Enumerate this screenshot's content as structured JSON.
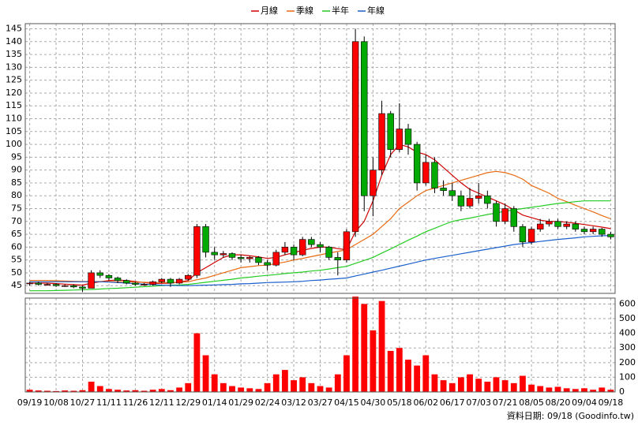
{
  "chart_data": [
    {
      "type": "candlestick",
      "open": [
        46,
        46,
        45.5,
        45.5,
        45,
        45,
        44.5,
        44,
        50,
        49,
        48,
        47,
        46,
        45.5,
        45.5,
        46.5,
        47.5,
        46,
        47.5,
        49,
        68,
        58,
        57,
        57.5,
        56,
        55.5,
        56,
        54,
        53,
        58,
        60,
        57,
        63,
        61,
        60,
        56,
        55,
        66,
        140,
        80,
        90,
        112,
        98,
        106,
        100,
        85,
        93,
        83,
        82,
        80,
        76,
        79,
        80,
        77,
        70,
        75,
        68,
        62,
        67,
        69,
        70,
        68,
        69,
        67,
        66,
        67,
        65
      ],
      "high": [
        46.5,
        46.5,
        46,
        46,
        45.5,
        45.5,
        45,
        51,
        51,
        49.5,
        48.5,
        47.5,
        46.5,
        46,
        47,
        48,
        48,
        48,
        49.5,
        69,
        69,
        60,
        58.5,
        58,
        57,
        56.5,
        56.5,
        55,
        59,
        62,
        61,
        64,
        64,
        62,
        60.5,
        58,
        67,
        145,
        142,
        95,
        117,
        113,
        116,
        108,
        101,
        96,
        95,
        86,
        85,
        82,
        83,
        85,
        82,
        78,
        77,
        76,
        69,
        68,
        71,
        71,
        71,
        70,
        70,
        68,
        68,
        67.5,
        66
      ],
      "low": [
        45,
        45,
        45,
        44.5,
        44.5,
        44,
        42.5,
        44,
        48,
        47,
        46,
        45.5,
        45,
        45,
        45,
        46,
        44.5,
        45.5,
        47,
        48,
        56,
        55,
        56,
        55,
        54,
        54,
        53,
        51,
        52.5,
        57,
        55,
        56.5,
        60,
        58,
        55,
        49,
        54,
        64,
        74,
        72,
        88,
        95,
        97,
        96,
        82,
        84,
        81,
        80,
        78,
        74,
        75,
        77,
        75,
        68,
        69,
        66,
        60,
        61,
        66,
        68,
        67,
        67,
        66,
        65,
        65,
        64,
        63
      ],
      "close": [
        46,
        45.5,
        45.5,
        45,
        45,
        44.5,
        44,
        50,
        49,
        48,
        47,
        46,
        45.5,
        45.5,
        46.5,
        47.5,
        46,
        47.5,
        49,
        68,
        58,
        57,
        57.5,
        56,
        55.5,
        56,
        54,
        53,
        58,
        60,
        57,
        63,
        61,
        60,
        56,
        55,
        66,
        140,
        80,
        90,
        112,
        98,
        106,
        100,
        85,
        93,
        83,
        82,
        80,
        76,
        79,
        80,
        77,
        70,
        75,
        68,
        62,
        67,
        69,
        70,
        68,
        69,
        67,
        66,
        67,
        65,
        64
      ],
      "up_color": "#ff0000",
      "down_color": "#00aa00",
      "series": [
        {
          "name": "月線",
          "color": "#d00000",
          "values": [
            46,
            46,
            46,
            45.8,
            45.6,
            45.4,
            45.2,
            46,
            46.5,
            47,
            47.2,
            47,
            46.6,
            46.2,
            45.9,
            45.9,
            46,
            46.4,
            47,
            50,
            52,
            54,
            56,
            57,
            57,
            56.6,
            56.2,
            55.6,
            56,
            57,
            57.8,
            58.8,
            59.5,
            60,
            60,
            59.4,
            59,
            66,
            70,
            78,
            88,
            96,
            100,
            99,
            97,
            96,
            94,
            91,
            88,
            85,
            82.5,
            81,
            79.5,
            78,
            76.5,
            74.5,
            72.5,
            71.5,
            70.5,
            70,
            70,
            69.7,
            69.3,
            68.8,
            68.3,
            67.8,
            67.2
          ]
        },
        {
          "name": "季線",
          "color": "#e86a10",
          "values": [
            47,
            47,
            47,
            46.9,
            46.8,
            46.7,
            46.6,
            46.6,
            46.6,
            46.6,
            46.5,
            46.5,
            46.4,
            46.3,
            46.2,
            46.2,
            46.2,
            46.3,
            46.5,
            47.3,
            48,
            49,
            50,
            51,
            52,
            52.4,
            52.8,
            53,
            53.6,
            54.2,
            55,
            55.6,
            56.3,
            57,
            57.7,
            58.3,
            59,
            61,
            63,
            65,
            68,
            71,
            75,
            77.5,
            80,
            82,
            83,
            84,
            85,
            86,
            87,
            88,
            89,
            89.5,
            89,
            88,
            86.5,
            84,
            82.5,
            81,
            79,
            77.7,
            76.3,
            75,
            73.7,
            72.3,
            71
          ]
        },
        {
          "name": "半年",
          "color": "#22cc22",
          "values": [
            43,
            43,
            43,
            43.1,
            43.2,
            43.3,
            43.4,
            43.5,
            43.7,
            43.9,
            44,
            44.2,
            44.4,
            44.6,
            44.8,
            45,
            45.2,
            45.3,
            45.5,
            45.9,
            46.3,
            46.7,
            47.1,
            47.5,
            48,
            48.3,
            48.7,
            49,
            49.3,
            49.7,
            50,
            50.3,
            50.7,
            51,
            51.5,
            52,
            52.5,
            53.7,
            54.8,
            56,
            57.7,
            59.3,
            61,
            62.7,
            64.3,
            66,
            67.3,
            68.7,
            70,
            70.7,
            71.3,
            72,
            72.7,
            73.3,
            74,
            74.5,
            75,
            75.5,
            76,
            76.5,
            77,
            77.3,
            77.7,
            78,
            78,
            78,
            78
          ]
        },
        {
          "name": "年線",
          "color": "#1a5fcc",
          "values": [
            46.5,
            46.5,
            46.5,
            46.5,
            46.5,
            46.5,
            46.5,
            46.5,
            46.5,
            46.4,
            46.2,
            46,
            45.8,
            45.6,
            45.4,
            45.2,
            45.1,
            45,
            45,
            45.1,
            45.2,
            45.3,
            45.4,
            45.5,
            45.7,
            45.8,
            46,
            46.2,
            46.3,
            46.4,
            46.5,
            46.7,
            47,
            47.2,
            47.5,
            47.7,
            48,
            48.8,
            49.5,
            50.3,
            51,
            51.8,
            52.6,
            53.4,
            54.2,
            55,
            55.6,
            56.2,
            56.8,
            57.4,
            58,
            58.6,
            59.2,
            59.8,
            60.4,
            61,
            61.4,
            61.8,
            62.2,
            62.6,
            63,
            63.3,
            63.6,
            64,
            64.2,
            64.4,
            64.5
          ]
        }
      ],
      "ylim": [
        42,
        147
      ],
      "yticks": [
        45,
        50,
        55,
        60,
        65,
        70,
        75,
        80,
        85,
        90,
        95,
        100,
        105,
        110,
        115,
        120,
        125,
        130,
        135,
        140,
        145
      ],
      "grid": true
    },
    {
      "type": "bar",
      "categories": [
        "09/19",
        null,
        null,
        "10/08",
        null,
        null,
        "10/27",
        null,
        null,
        "11/11",
        null,
        null,
        "11/26",
        null,
        null,
        "12/11",
        null,
        null,
        "12/29",
        null,
        null,
        "01/14",
        null,
        null,
        "01/29",
        null,
        null,
        "02/24",
        null,
        null,
        "03/12",
        null,
        null,
        "03/27",
        null,
        null,
        "04/15",
        null,
        null,
        "04/30",
        null,
        null,
        "05/18",
        null,
        null,
        "06/02",
        null,
        null,
        "06/17",
        null,
        null,
        "07/03",
        null,
        null,
        "07/21",
        null,
        null,
        "08/05",
        null,
        null,
        "08/20",
        null,
        null,
        "09/04",
        null,
        null,
        "09/18"
      ],
      "values": [
        15,
        10,
        8,
        6,
        10,
        8,
        12,
        70,
        40,
        20,
        15,
        10,
        12,
        8,
        15,
        20,
        12,
        30,
        60,
        400,
        250,
        120,
        60,
        40,
        30,
        25,
        20,
        60,
        120,
        150,
        80,
        100,
        60,
        40,
        30,
        120,
        250,
        650,
        600,
        420,
        620,
        280,
        300,
        220,
        180,
        250,
        120,
        80,
        60,
        100,
        120,
        90,
        70,
        100,
        80,
        60,
        110,
        50,
        40,
        30,
        35,
        25,
        20,
        25,
        15,
        30,
        15
      ],
      "color": "#ff0000",
      "ylim": [
        0,
        640
      ],
      "yticks": [
        0,
        100,
        200,
        300,
        400,
        500,
        600
      ],
      "grid": true,
      "note": "資料日期: 09/18  (Goodinfo.tw)"
    }
  ]
}
